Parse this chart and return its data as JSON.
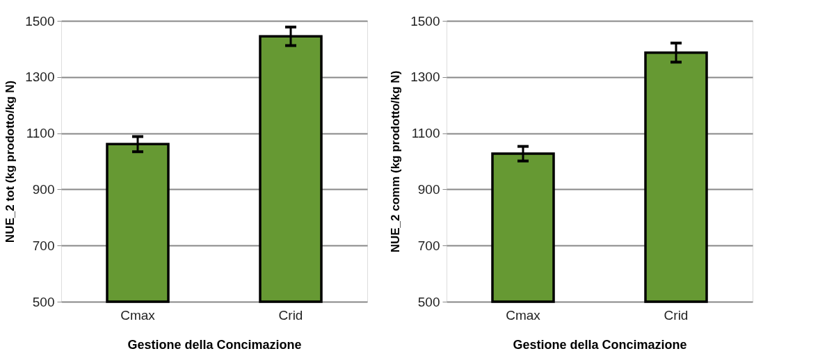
{
  "chart_data": [
    {
      "type": "bar",
      "categories": [
        "Cmax",
        "Crid"
      ],
      "values": [
        1061,
        1445
      ],
      "errors": [
        27,
        33
      ],
      "color": "#669933",
      "xlabel": "Gestione della Concimazione",
      "ylabel": "NUE_2 tot (kg prodotto/kg N)",
      "ylim": [
        500,
        1500
      ],
      "yticks": [
        500,
        700,
        900,
        1100,
        1300,
        1500
      ],
      "grid": "y"
    },
    {
      "type": "bar",
      "categories": [
        "Cmax",
        "Crid"
      ],
      "values": [
        1027,
        1387
      ],
      "errors": [
        26,
        34
      ],
      "color": "#669933",
      "xlabel": "Gestione della Concimazione",
      "ylabel": "NUE_2 comm (kg prodotto/kg N)",
      "ylim": [
        500,
        1500
      ],
      "yticks": [
        500,
        700,
        900,
        1100,
        1300,
        1500
      ],
      "grid": "y"
    }
  ]
}
